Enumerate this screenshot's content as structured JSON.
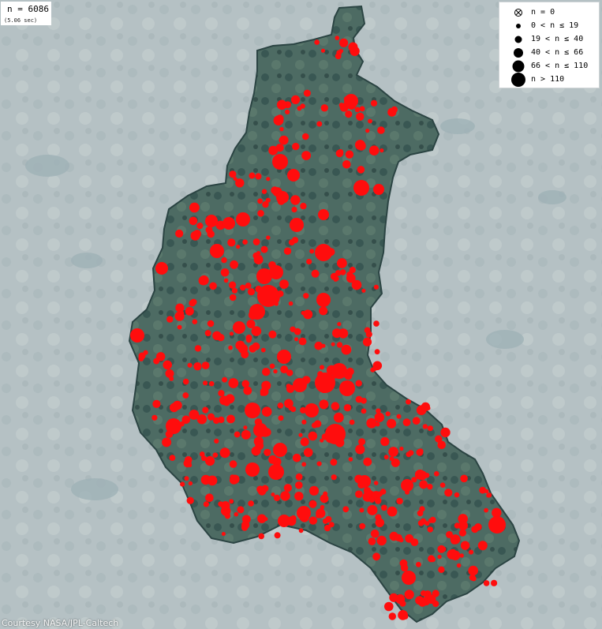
{
  "map": {
    "total_label": "n = 6086",
    "time_label": "(5.06 sec)",
    "credit": "Courtesy NASA/JPL-Caltech",
    "colors": {
      "background": "#b7c3c6",
      "region": "#3d5a55",
      "region_edge": "#2b4443",
      "cluster": "#ff0d0d"
    },
    "legend": [
      {
        "symbol": "empty-x-circle",
        "label": "n = 0"
      },
      {
        "symbol": "tiny-dot",
        "label": "0 < n ≤ 19"
      },
      {
        "symbol": "small-dot",
        "label": "19 < n ≤ 40"
      },
      {
        "symbol": "medium-dot",
        "label": "40 < n ≤ 66"
      },
      {
        "symbol": "large-dot",
        "label": "66 < n ≤ 110"
      },
      {
        "symbol": "huge-dot",
        "label": "n > 110"
      }
    ]
  }
}
